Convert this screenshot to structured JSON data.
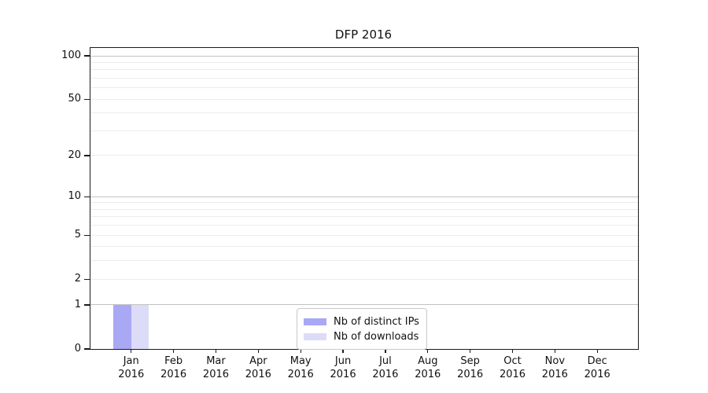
{
  "chart_data": {
    "type": "bar",
    "title": "DFP 2016",
    "categories": [
      "Jan 2016",
      "Feb 2016",
      "Mar 2016",
      "Apr 2016",
      "May 2016",
      "Jun 2016",
      "Jul 2016",
      "Aug 2016",
      "Sep 2016",
      "Oct 2016",
      "Nov 2016",
      "Dec 2016"
    ],
    "series": [
      {
        "name": "Nb of distinct IPs",
        "color": "#a8a8f4",
        "values": [
          1,
          0,
          0,
          0,
          0,
          0,
          0,
          0,
          0,
          0,
          0,
          0
        ]
      },
      {
        "name": "Nb of downloads",
        "color": "#dcdcf9",
        "values": [
          1,
          0,
          0,
          0,
          0,
          0,
          0,
          0,
          0,
          0,
          0,
          0
        ]
      }
    ],
    "xlabel": "",
    "ylabel": "",
    "yscale": "log1p",
    "ylim": [
      0,
      115
    ],
    "y_ticks": [
      0,
      1,
      2,
      5,
      10,
      20,
      50,
      100
    ],
    "y_grid_major": [
      1,
      10,
      100
    ],
    "y_grid_minor": [
      2,
      3,
      4,
      5,
      6,
      7,
      8,
      9,
      20,
      30,
      40,
      50,
      60,
      70,
      80,
      90
    ],
    "grid": true,
    "legend_position": "lower center"
  },
  "legend": {
    "items": [
      "Nb of distinct IPs",
      "Nb of downloads"
    ]
  },
  "colors": {
    "bar_distinct_ips": "#a8a8f4",
    "bar_downloads": "#dcdcf9",
    "grid_minor": "#ececec",
    "grid_major": "#c2c2c2",
    "axis": "#1a1a1a",
    "legend_border": "#c9c9c9",
    "background": "#ffffff"
  }
}
